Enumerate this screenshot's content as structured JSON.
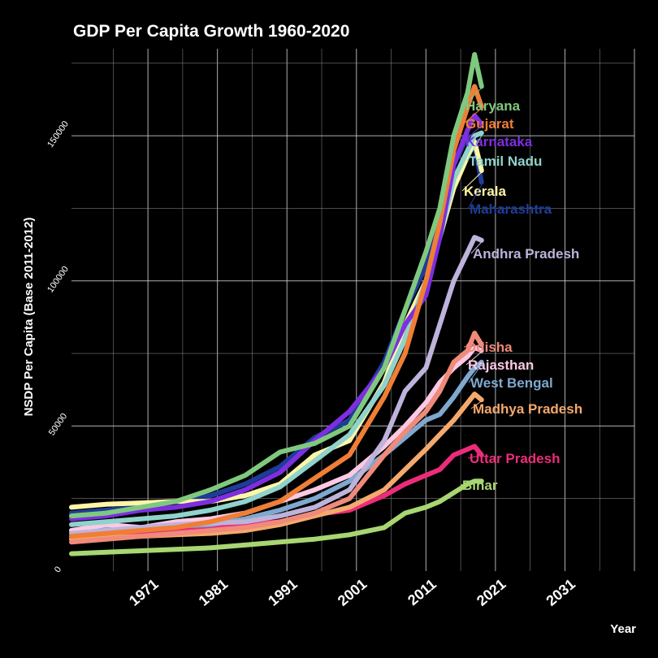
{
  "chart_data": {
    "type": "line",
    "title": "GDP Per Capita Growth 1960-2020",
    "xlabel": "Year",
    "ylabel": "NSDP Per Capita (Base 2011-2012)",
    "xlim": [
      1960,
      2041
    ],
    "ylim": [
      0,
      180000
    ],
    "x_ticks": [
      1971,
      1981,
      1991,
      2001,
      2011,
      2021,
      2031
    ],
    "x_tick_labels": [
      "1971",
      "1981",
      "1991",
      "2001",
      "2011",
      "2021",
      "2031"
    ],
    "y_ticks": [
      0,
      50000,
      100000,
      150000
    ],
    "y_tick_labels": [
      "0",
      "50000",
      "100000",
      "150000"
    ],
    "grid": true,
    "legend": "direct end labels",
    "series": [
      {
        "name": "Haryana",
        "color": "#7FC97F",
        "x": [
          1960,
          1965,
          1970,
          1975,
          1980,
          1985,
          1990,
          1995,
          2000,
          2005,
          2008,
          2011,
          2013,
          2015,
          2017,
          2018,
          2019
        ],
        "y": [
          19000,
          20000,
          22000,
          24000,
          28000,
          33000,
          41000,
          44000,
          50000,
          70000,
          90000,
          110000,
          125000,
          150000,
          165000,
          178000,
          167000
        ]
      },
      {
        "name": "Gujarat",
        "color": "#F07E36",
        "x": [
          1960,
          1965,
          1970,
          1975,
          1980,
          1985,
          1990,
          1995,
          2000,
          2005,
          2008,
          2011,
          2013,
          2015,
          2017,
          2018,
          2019
        ],
        "y": [
          12000,
          13000,
          14000,
          15000,
          17000,
          20000,
          24000,
          32000,
          40000,
          60000,
          75000,
          100000,
          120000,
          145000,
          160000,
          167000,
          160000
        ]
      },
      {
        "name": "Karnataka",
        "color": "#7D2FE0",
        "x": [
          1960,
          1965,
          1970,
          1975,
          1980,
          1985,
          1990,
          1995,
          2000,
          2005,
          2008,
          2011,
          2013,
          2015,
          2017,
          2018,
          2019
        ],
        "y": [
          18000,
          19000,
          21000,
          22000,
          24000,
          28000,
          34000,
          45000,
          55000,
          70000,
          85000,
          95000,
          115000,
          140000,
          152000,
          157000,
          154000
        ]
      },
      {
        "name": "Tamil Nadu",
        "color": "#8FD3CC",
        "x": [
          1960,
          1965,
          1970,
          1975,
          1980,
          1985,
          1990,
          1995,
          2000,
          2005,
          2008,
          2011,
          2013,
          2015,
          2017,
          2018,
          2019
        ],
        "y": [
          16000,
          17000,
          18000,
          19000,
          21000,
          24000,
          29000,
          38000,
          47000,
          64000,
          80000,
          100000,
          115000,
          135000,
          145000,
          150000,
          151000
        ]
      },
      {
        "name": "Kerala",
        "color": "#FFF5A8",
        "x": [
          1960,
          1965,
          1970,
          1975,
          1980,
          1985,
          1990,
          1995,
          2000,
          2005,
          2008,
          2011,
          2013,
          2015,
          2017,
          2018,
          2019
        ],
        "y": [
          22000,
          23000,
          23500,
          24000,
          24000,
          26000,
          30000,
          40000,
          45000,
          65000,
          85000,
          100000,
          115000,
          132000,
          143000,
          148000,
          138000
        ]
      },
      {
        "name": "Maharashtra",
        "color": "#1F3C99",
        "x": [
          1960,
          1965,
          1970,
          1975,
          1980,
          1985,
          1990,
          1995,
          2000,
          2005,
          2008,
          2011,
          2013,
          2015,
          2017,
          2018,
          2019
        ],
        "y": [
          20000,
          21000,
          22000,
          24000,
          26000,
          30000,
          36000,
          46000,
          52000,
          72000,
          90000,
          105000,
          120000,
          140000,
          150000,
          147000,
          134000
        ]
      },
      {
        "name": "Andhra Pradesh",
        "color": "#BEB3DB",
        "x": [
          1960,
          1965,
          1970,
          1975,
          1980,
          1985,
          1990,
          1995,
          2000,
          2005,
          2008,
          2011,
          2013,
          2015,
          2017,
          2018,
          2019
        ],
        "y": [
          13000,
          14000,
          15000,
          16000,
          16500,
          17000,
          19000,
          22000,
          28000,
          45000,
          62000,
          70000,
          85000,
          100000,
          110000,
          115000,
          114000
        ]
      },
      {
        "name": "Odisha",
        "color": "#F08A7A",
        "x": [
          1960,
          1965,
          1970,
          1975,
          1980,
          1985,
          1990,
          1995,
          2000,
          2005,
          2008,
          2011,
          2013,
          2015,
          2017,
          2018,
          2019
        ],
        "y": [
          10000,
          11000,
          12000,
          13000,
          14000,
          15000,
          17000,
          20000,
          25000,
          40000,
          48000,
          55000,
          62000,
          72000,
          76000,
          82000,
          78000
        ]
      },
      {
        "name": "Rajasthan",
        "color": "#FCC9E3",
        "x": [
          1960,
          1965,
          1970,
          1975,
          1980,
          1985,
          1990,
          1995,
          2000,
          2005,
          2008,
          2011,
          2013,
          2015,
          2017,
          2018,
          2019
        ],
        "y": [
          14000,
          16000,
          15000,
          17000,
          18000,
          20000,
          24000,
          28000,
          33000,
          43000,
          50000,
          58000,
          65000,
          70000,
          74000,
          77000,
          76000
        ]
      },
      {
        "name": "West Bengal",
        "color": "#7FA8CE",
        "x": [
          1960,
          1965,
          1970,
          1975,
          1980,
          1985,
          1990,
          1995,
          2000,
          2005,
          2008,
          2011,
          2013,
          2015,
          2017,
          2018,
          2019
        ],
        "y": [
          14000,
          14500,
          15000,
          15500,
          16000,
          18000,
          21000,
          25000,
          31000,
          40000,
          46000,
          52000,
          54000,
          60000,
          67000,
          70000,
          72000
        ]
      },
      {
        "name": "Madhya Pradesh",
        "color": "#F5A96C",
        "x": [
          1960,
          1965,
          1970,
          1975,
          1980,
          1985,
          1990,
          1995,
          2000,
          2005,
          2008,
          2011,
          2013,
          2015,
          2017,
          2018,
          2019
        ],
        "y": [
          11000,
          11500,
          12000,
          12500,
          13000,
          14000,
          16000,
          19000,
          22000,
          28000,
          35000,
          42000,
          47000,
          52000,
          58000,
          61000,
          59000
        ]
      },
      {
        "name": "Uttar Pradesh",
        "color": "#EB2C7B",
        "x": [
          1960,
          1965,
          1970,
          1975,
          1980,
          1985,
          1990,
          1995,
          2000,
          2005,
          2008,
          2011,
          2013,
          2015,
          2017,
          2018,
          2019
        ],
        "y": [
          12000,
          12500,
          13000,
          14000,
          15000,
          16000,
          17000,
          19500,
          21000,
          26000,
          30000,
          33000,
          35000,
          40000,
          42000,
          43000,
          40000
        ]
      },
      {
        "name": "Bihar",
        "color": "#A8D672",
        "x": [
          1960,
          1965,
          1970,
          1975,
          1980,
          1985,
          1990,
          1995,
          2000,
          2005,
          2008,
          2011,
          2013,
          2015,
          2017,
          2018,
          2019
        ],
        "y": [
          6000,
          6500,
          7000,
          7500,
          8000,
          9000,
          10000,
          11000,
          12500,
          15000,
          20000,
          22000,
          24000,
          27000,
          30000,
          31000,
          31000
        ]
      }
    ]
  }
}
